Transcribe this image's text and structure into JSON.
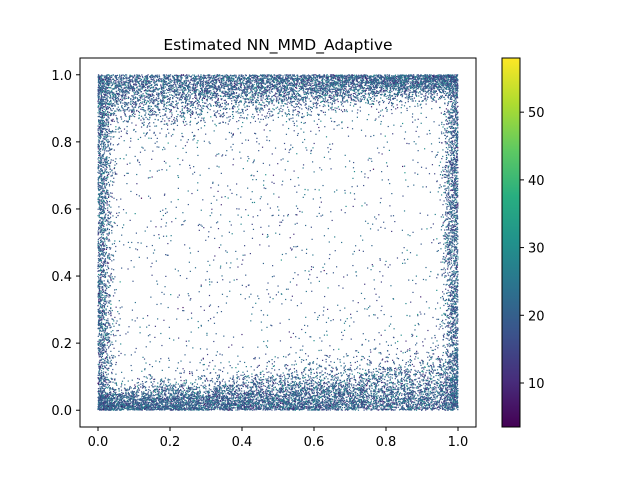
{
  "chart_data": {
    "type": "scatter",
    "title": "Estimated NN_MMD_Adaptive",
    "xlabel": "",
    "ylabel": "",
    "xlim": [
      -0.05,
      1.05
    ],
    "ylim": [
      -0.05,
      1.05
    ],
    "x_ticks": [
      "0.0",
      "0.2",
      "0.4",
      "0.6",
      "0.8",
      "1.0"
    ],
    "y_ticks": [
      "0.0",
      "0.2",
      "0.4",
      "0.6",
      "0.8",
      "1.0"
    ],
    "colormap": "viridis",
    "color_range": [
      3.5,
      58
    ],
    "colorbar_ticks": [
      "10",
      "20",
      "30",
      "40",
      "50"
    ],
    "grid": false,
    "legend": false,
    "description_points": {
      "distribution": "points dense near the top and bottom edges (y near 0 and y near 1) and along the left/right edges (x near 0 and x near 1); sparse in the interior",
      "approx_point_count": 20000,
      "dominant_color_value": 20
    }
  }
}
